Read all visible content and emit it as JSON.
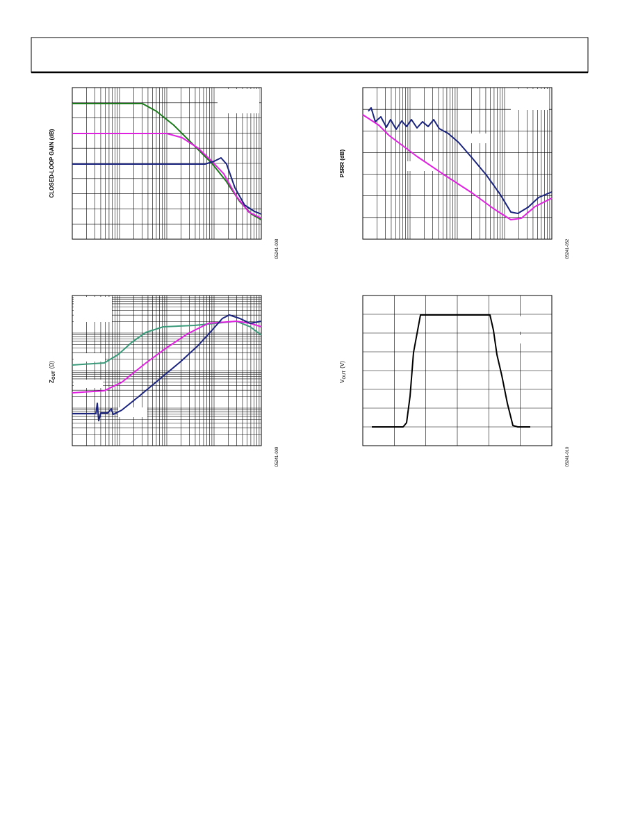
{
  "figures": [
    {
      "y_label": "CLOSED-LOOP GAIN (dB)",
      "code": "05241-008"
    },
    {
      "y_label": "PSRR (dB)",
      "code": "05241-052"
    },
    {
      "y_label_main": "Z",
      "y_label_sub": "OUT",
      "y_label_unit": "(Ω)",
      "code": "05241-009"
    },
    {
      "y_label_main": "V",
      "y_label_sub": "OUT",
      "y_label_unit": "(V)",
      "code": "05241-010"
    }
  ]
}
